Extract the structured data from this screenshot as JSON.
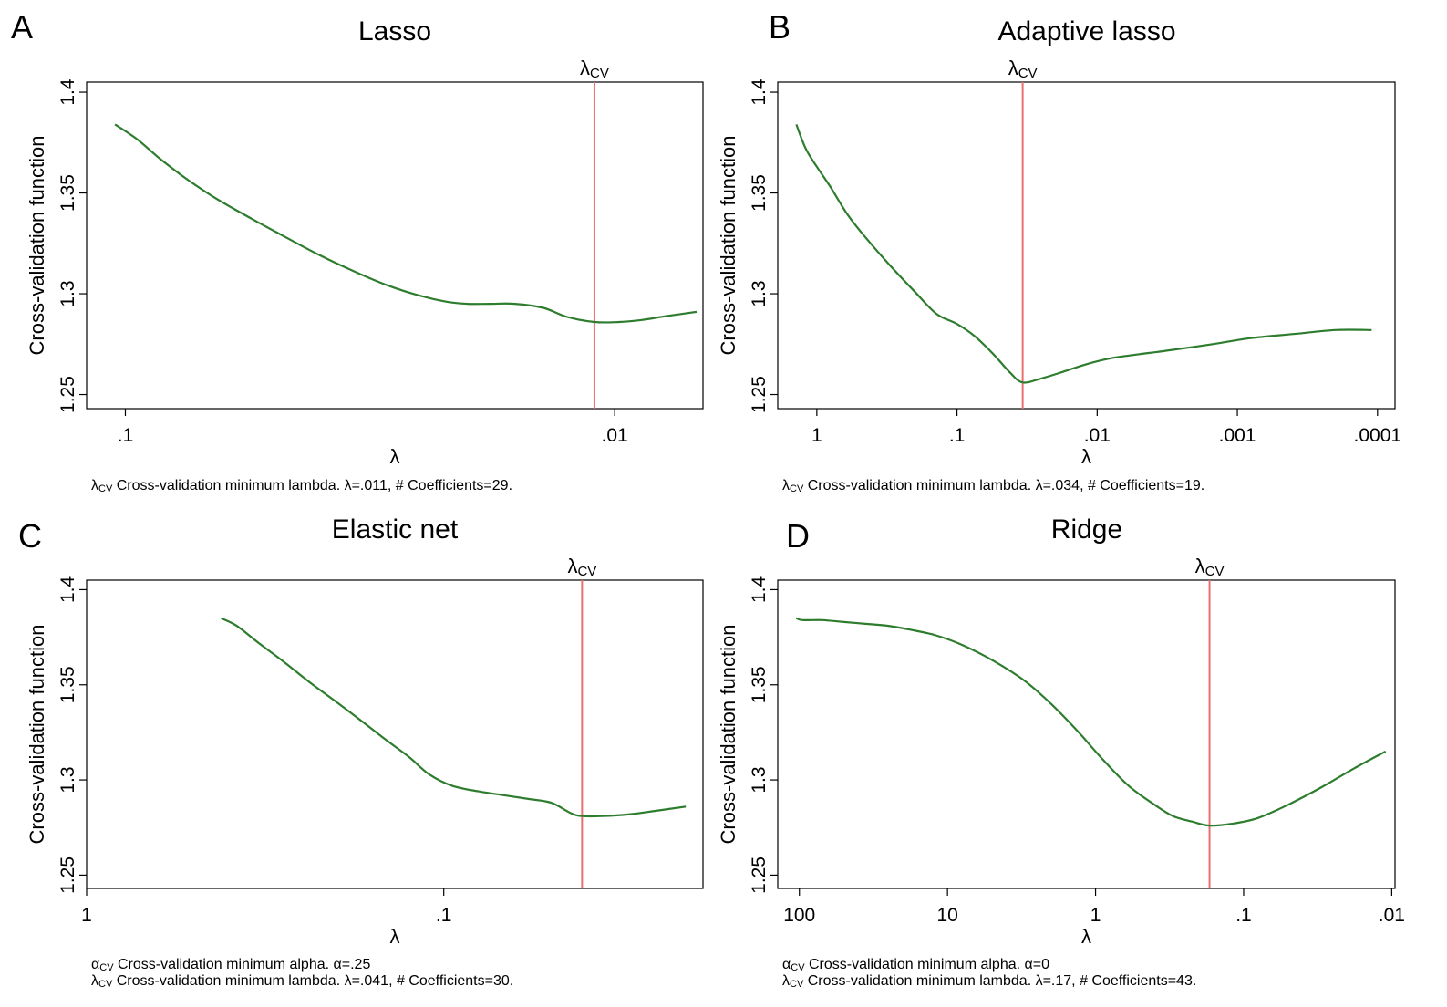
{
  "chart_data": [
    {
      "type": "line",
      "panel": "A",
      "title": "Lasso",
      "xlabel": "λ",
      "ylabel": "Cross-validation function",
      "x_scale": "log, reversed",
      "xlim": [
        0.12,
        0.0066
      ],
      "ylim": [
        1.243,
        1.405
      ],
      "x_ticks": [
        {
          "v": 0.1,
          "label": ".1"
        },
        {
          "v": 0.01,
          "label": ".01"
        }
      ],
      "y_ticks": [
        {
          "v": 1.25,
          "label": "1.25"
        },
        {
          "v": 1.3,
          "label": "1.3"
        },
        {
          "v": 1.35,
          "label": "1.35"
        },
        {
          "v": 1.4,
          "label": "1.4"
        }
      ],
      "cv_line": {
        "x": 0.011,
        "label": "λ",
        "label_sub": "CV"
      },
      "series": [
        {
          "x": [
            0.105,
            0.095,
            0.085,
            0.075,
            0.065,
            0.055,
            0.047,
            0.04,
            0.034,
            0.029,
            0.025,
            0.022,
            0.02,
            0.018,
            0.016,
            0.014,
            0.0125,
            0.011,
            0.0098,
            0.0088,
            0.0078,
            0.0068
          ],
          "y": [
            1.384,
            1.377,
            1.367,
            1.357,
            1.347,
            1.337,
            1.328,
            1.319,
            1.311,
            1.304,
            1.299,
            1.296,
            1.295,
            1.295,
            1.295,
            1.293,
            1.2885,
            1.286,
            1.286,
            1.287,
            1.289,
            1.291
          ]
        }
      ],
      "notes": [
        {
          "sym": "λ",
          "sub": "CV",
          "text": "Cross-validation minimum lambda.  λ=.011, # Coefficients=29."
        }
      ]
    },
    {
      "type": "line",
      "panel": "B",
      "title": "Adaptive lasso",
      "xlabel": "λ",
      "ylabel": "Cross-validation function",
      "x_scale": "log, reversed",
      "xlim": [
        1.9,
        7.5e-05
      ],
      "ylim": [
        1.243,
        1.405
      ],
      "x_ticks": [
        {
          "v": 1,
          "label": "1"
        },
        {
          "v": 0.1,
          "label": ".1"
        },
        {
          "v": 0.01,
          "label": ".01"
        },
        {
          "v": 0.001,
          "label": ".001"
        },
        {
          "v": 0.0001,
          "label": ".0001"
        }
      ],
      "y_ticks": [
        {
          "v": 1.25,
          "label": "1.25"
        },
        {
          "v": 1.3,
          "label": "1.3"
        },
        {
          "v": 1.35,
          "label": "1.35"
        },
        {
          "v": 1.4,
          "label": "1.4"
        }
      ],
      "cv_line": {
        "x": 0.034,
        "label": "λ",
        "label_sub": "CV"
      },
      "series": [
        {
          "x": [
            1.4,
            1.2,
            1.0,
            0.8,
            0.6,
            0.45,
            0.3,
            0.2,
            0.14,
            0.1,
            0.075,
            0.055,
            0.042,
            0.034,
            0.025,
            0.018,
            0.012,
            0.008,
            0.005,
            0.003,
            0.0015,
            0.0008,
            0.0004,
            0.0002,
            0.00011
          ],
          "y": [
            1.384,
            1.372,
            1.363,
            1.353,
            1.339,
            1.328,
            1.314,
            1.301,
            1.29,
            1.285,
            1.279,
            1.27,
            1.261,
            1.256,
            1.258,
            1.261,
            1.265,
            1.268,
            1.27,
            1.272,
            1.275,
            1.278,
            1.28,
            1.282,
            1.282
          ]
        }
      ],
      "notes": [
        {
          "sym": "λ",
          "sub": "CV",
          "text": "Cross-validation minimum lambda.  λ=.034, # Coefficients=19."
        }
      ]
    },
    {
      "type": "line",
      "panel": "C",
      "title": "Elastic net",
      "xlabel": "λ",
      "ylabel": "Cross-validation function",
      "x_scale": "log, reversed",
      "xlim": [
        1.0,
        0.0188
      ],
      "ylim": [
        1.243,
        1.405
      ],
      "x_ticks": [
        {
          "v": 1,
          "label": "1"
        },
        {
          "v": 0.1,
          "label": ".1"
        }
      ],
      "y_ticks": [
        {
          "v": 1.25,
          "label": "1.25"
        },
        {
          "v": 1.3,
          "label": "1.3"
        },
        {
          "v": 1.35,
          "label": "1.35"
        },
        {
          "v": 1.4,
          "label": "1.4"
        }
      ],
      "cv_line": {
        "x": 0.041,
        "label": "λ",
        "label_sub": "CV"
      },
      "series": [
        {
          "x": [
            0.42,
            0.38,
            0.33,
            0.28,
            0.24,
            0.2,
            0.17,
            0.145,
            0.125,
            0.11,
            0.095,
            0.08,
            0.068,
            0.058,
            0.05,
            0.044,
            0.041,
            0.036,
            0.03,
            0.025,
            0.021
          ],
          "y": [
            1.385,
            1.381,
            1.372,
            1.362,
            1.352,
            1.341,
            1.331,
            1.321,
            1.312,
            1.303,
            1.297,
            1.294,
            1.292,
            1.29,
            1.288,
            1.2825,
            1.281,
            1.281,
            1.282,
            1.284,
            1.286
          ]
        }
      ],
      "notes": [
        {
          "sym": "α",
          "sub": "CV",
          "text": "Cross-validation minimum alpha.  α=.25"
        },
        {
          "sym": "λ",
          "sub": "CV",
          "text": "Cross-validation minimum lambda.  λ=.041, # Coefficients=30."
        }
      ]
    },
    {
      "type": "line",
      "panel": "D",
      "title": "Ridge",
      "xlabel": "λ",
      "ylabel": "Cross-validation function",
      "x_scale": "log, reversed",
      "xlim": [
        140,
        0.0095
      ],
      "ylim": [
        1.243,
        1.405
      ],
      "x_ticks": [
        {
          "v": 100,
          "label": "100"
        },
        {
          "v": 10,
          "label": "10"
        },
        {
          "v": 1,
          "label": "1"
        },
        {
          "v": 0.1,
          "label": ".1"
        },
        {
          "v": 0.01,
          "label": ".01"
        }
      ],
      "y_ticks": [
        {
          "v": 1.25,
          "label": "1.25"
        },
        {
          "v": 1.3,
          "label": "1.3"
        },
        {
          "v": 1.35,
          "label": "1.35"
        },
        {
          "v": 1.4,
          "label": "1.4"
        }
      ],
      "cv_line": {
        "x": 0.17,
        "label": "λ",
        "label_sub": "CV"
      },
      "series": [
        {
          "x": [
            105,
            95,
            70,
            50,
            35,
            25,
            18,
            12,
            8,
            5,
            3,
            2,
            1.3,
            0.9,
            0.6,
            0.4,
            0.3,
            0.22,
            0.17,
            0.12,
            0.08,
            0.05,
            0.03,
            0.018,
            0.011
          ],
          "y": [
            1.385,
            1.384,
            1.384,
            1.383,
            1.382,
            1.381,
            1.379,
            1.376,
            1.371,
            1.363,
            1.352,
            1.34,
            1.325,
            1.311,
            1.297,
            1.287,
            1.281,
            1.278,
            1.276,
            1.277,
            1.28,
            1.287,
            1.296,
            1.306,
            1.315
          ]
        }
      ],
      "notes": [
        {
          "sym": "α",
          "sub": "CV",
          "text": "Cross-validation minimum alpha.  α=0"
        },
        {
          "sym": "λ",
          "sub": "CV",
          "text": "Cross-validation minimum lambda.  λ=.17, # Coefficients=43."
        }
      ]
    }
  ],
  "colors": {
    "curve": "#2e7d2e",
    "cv_line": "#e8706f",
    "axis": "#000000",
    "frame": "#000000"
  }
}
